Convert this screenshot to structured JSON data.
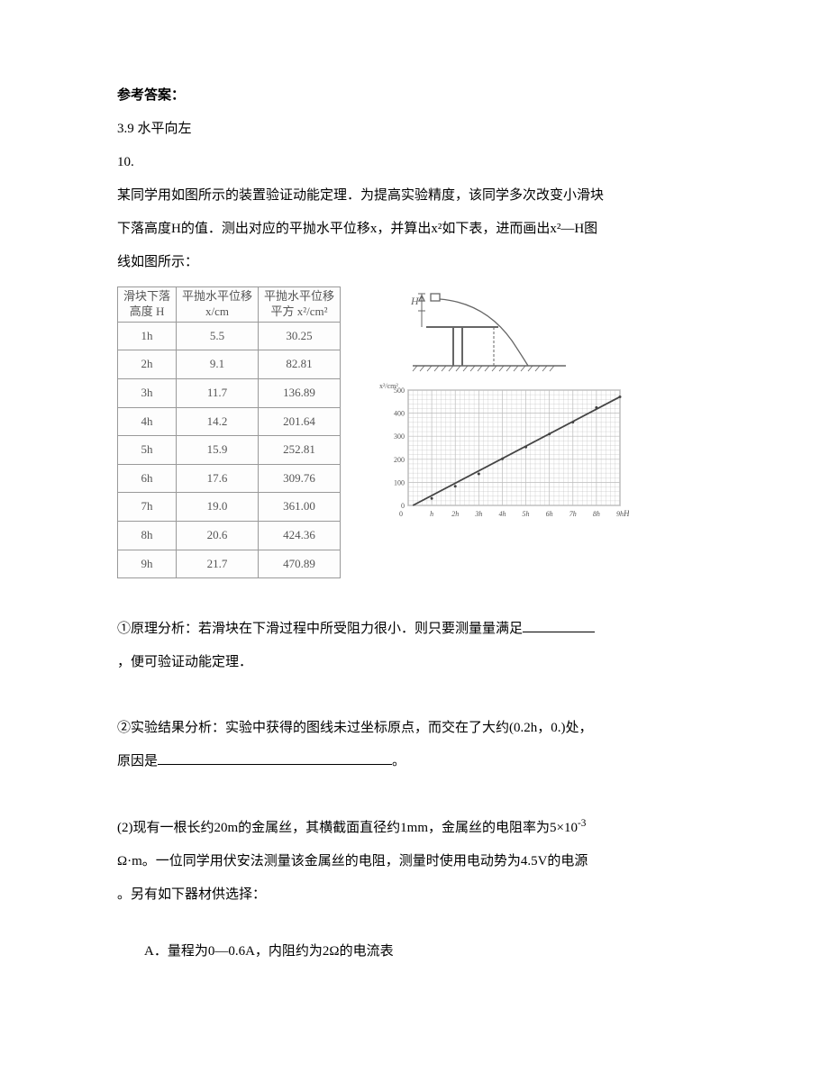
{
  "answer_label": "参考答案：",
  "answer_line": "3.9   水平向左",
  "q10_label": "10.",
  "q10_intro": [
    "某同学用如图所示的装置验证动能定理．为提高实验精度，该同学多次改变小滑块",
    "下落高度H的值．测出对应的平抛水平位移x，并算出x²如下表，进而画出x²—H图",
    "线如图所示："
  ],
  "table": {
    "headers": {
      "c1a": "滑块下落",
      "c1b": "高度 H",
      "c2a": "平抛水平位移",
      "c2b": "x/cm",
      "c3a": "平抛水平位移",
      "c3b": "平方 x²/cm²"
    },
    "rows": [
      {
        "h": "1h",
        "x": "5.5",
        "x2": "30.25"
      },
      {
        "h": "2h",
        "x": "9.1",
        "x2": "82.81"
      },
      {
        "h": "3h",
        "x": "11.7",
        "x2": "136.89"
      },
      {
        "h": "4h",
        "x": "14.2",
        "x2": "201.64"
      },
      {
        "h": "5h",
        "x": "15.9",
        "x2": "252.81"
      },
      {
        "h": "6h",
        "x": "17.6",
        "x2": "309.76"
      },
      {
        "h": "7h",
        "x": "19.0",
        "x2": "361.00"
      },
      {
        "h": "8h",
        "x": "20.6",
        "x2": "424.36"
      },
      {
        "h": "9h",
        "x": "21.7",
        "x2": "470.89"
      }
    ]
  },
  "apparatus": {
    "label_H": "H",
    "colors": {
      "stroke": "#666666",
      "fill": "#ffffff",
      "hatch": "#777777"
    }
  },
  "chart": {
    "type": "line",
    "ylabel": "x²/cm²",
    "xlabel": "H",
    "xticks": [
      "h",
      "2h",
      "3h",
      "4h",
      "5h",
      "6h",
      "7h",
      "8h",
      "9h"
    ],
    "yticks": [
      0,
      100,
      200,
      300,
      400,
      500
    ],
    "ylim": [
      0,
      500
    ],
    "series_color": "#444444",
    "grid_color": "#bbbbbb",
    "background_color": "#ffffff",
    "axis_color": "#555555",
    "tick_fontsize": 8,
    "points": [
      {
        "x": 1,
        "y": 30.25
      },
      {
        "x": 2,
        "y": 82.81
      },
      {
        "x": 3,
        "y": 136.89
      },
      {
        "x": 4,
        "y": 201.64
      },
      {
        "x": 5,
        "y": 252.81
      },
      {
        "x": 6,
        "y": 309.76
      },
      {
        "x": 7,
        "y": 361.0
      },
      {
        "x": 8,
        "y": 424.36
      },
      {
        "x": 9,
        "y": 470.89
      }
    ],
    "line_start": {
      "x": 0.2,
      "y": 0
    },
    "line_end": {
      "x": 9,
      "y": 470.89
    }
  },
  "q1_text_a": "①原理分析：若滑块在下滑过程中所受阻力很小．则只要测量量满足",
  "q1_text_b": "，便可验证动能定理．",
  "q2_text_a": "②实验结果分析：实验中获得的图线未过坐标原点，而交在了大约(0.2h，0.)处，",
  "q2_text_b": "原因是",
  "q2_text_c": "。",
  "part2_a": "(2)现有一根长约20m的金属丝，其横截面直径约1mm，金属丝的电阻率为5×10",
  "part2_sup": "-3",
  "part2_b": "Ω·m。一位同学用伏安法测量该金属丝的电阻，测量时使用电动势为4.5V的电源",
  "part2_c": "。另有如下器材供选择：",
  "part2_A": "A．量程为0—0.6A，内阻约为2Ω的电流表"
}
